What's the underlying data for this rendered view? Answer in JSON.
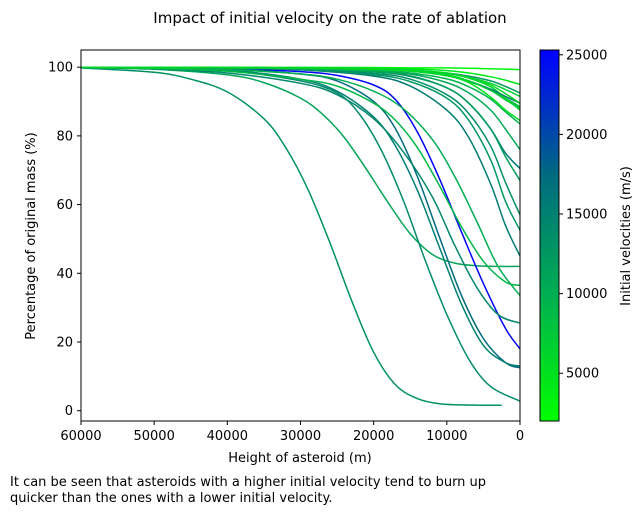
{
  "chart_data": {
    "type": "line",
    "title": "Impact of initial velocity on the rate of ablation",
    "xlabel": "Height of asteroid (m)",
    "ylabel": "Percentage of original mass (%)",
    "xlim": [
      60000,
      0
    ],
    "ylim": [
      -3,
      105
    ],
    "x_inverted": true,
    "grid": false,
    "xticks": [
      60000,
      50000,
      40000,
      30000,
      20000,
      10000,
      0
    ],
    "yticks": [
      0,
      20,
      40,
      60,
      80,
      100
    ],
    "colorbar": {
      "label": "Initial velocities (m/s)",
      "min": 2000,
      "max": 25300,
      "ticks": [
        5000,
        10000,
        15000,
        20000,
        25000
      ],
      "colormap": [
        "#00ff00",
        "#00b050",
        "#006a80",
        "#0000ff"
      ]
    },
    "series": [
      {
        "velocity": 13200,
        "x": [
          60000,
          50000,
          45000,
          40000,
          35000,
          32000,
          29000,
          26000,
          23000,
          20000,
          17000,
          14000,
          11000,
          8000,
          5000,
          2500
        ],
        "y": [
          99.8,
          98.5,
          96.5,
          92.8,
          85.0,
          76.5,
          64.5,
          49.0,
          32.0,
          17.0,
          7.5,
          3.5,
          2.0,
          1.7,
          1.6,
          1.6
        ]
      },
      {
        "velocity": 11000,
        "x": [
          60000,
          50000,
          40000,
          35000,
          30000,
          27000,
          24000,
          21000,
          18000,
          15000,
          12000,
          9000,
          6000,
          3000,
          0
        ],
        "y": [
          99.8,
          99.4,
          97.8,
          95.5,
          91.0,
          86.3,
          79.5,
          70.3,
          60.5,
          51.5,
          45.5,
          43.0,
          42.2,
          42.0,
          42.0
        ]
      },
      {
        "velocity": 25000,
        "x": [
          60000,
          50000,
          40000,
          30000,
          25000,
          20000,
          17000,
          14000,
          11000,
          8000,
          5000,
          2000,
          0
        ],
        "y": [
          100,
          99.9,
          99.6,
          98.7,
          97.6,
          94.8,
          90.5,
          81.0,
          67.5,
          52.0,
          37.0,
          24.0,
          18.0
        ]
      },
      {
        "velocity": 17500,
        "x": [
          60000,
          50000,
          40000,
          30000,
          25000,
          20000,
          17000,
          14000,
          11000,
          8000,
          5000,
          2000,
          0
        ],
        "y": [
          100,
          99.9,
          99.5,
          98.0,
          96.0,
          90.0,
          82.0,
          68.0,
          50.5,
          33.5,
          21.0,
          14.0,
          12.5
        ]
      },
      {
        "velocity": 15200,
        "x": [
          60000,
          50000,
          40000,
          30000,
          25000,
          20000,
          17000,
          14000,
          11000,
          8000,
          5000,
          2000,
          0
        ],
        "y": [
          100,
          99.8,
          99.2,
          96.5,
          93.0,
          85.5,
          77.0,
          64.0,
          47.5,
          31.0,
          19.0,
          14.0,
          13.0
        ]
      },
      {
        "velocity": 14300,
        "x": [
          60000,
          50000,
          40000,
          30000,
          25000,
          20000,
          16000,
          12000,
          9000,
          6000,
          3000,
          0
        ],
        "y": [
          99.9,
          99.5,
          98.3,
          95.3,
          92.0,
          85.0,
          75.5,
          62.3,
          48.5,
          36.2,
          28.0,
          25.5
        ]
      },
      {
        "velocity": 14000,
        "x": [
          60000,
          50000,
          40000,
          30000,
          25000,
          22000,
          19000,
          16000,
          13000,
          10000,
          7000,
          4000,
          0
        ],
        "y": [
          99.9,
          99.7,
          99.0,
          96.0,
          92.5,
          86.5,
          76.0,
          61.5,
          44.0,
          28.0,
          15.0,
          7.0,
          2.8
        ]
      },
      {
        "velocity": 9000,
        "x": [
          60000,
          50000,
          40000,
          30000,
          25000,
          20000,
          17000,
          14000,
          11000,
          8000,
          5000,
          2000,
          0
        ],
        "y": [
          99.9,
          99.6,
          98.8,
          96.5,
          94.5,
          89.5,
          84.5,
          76.5,
          65.5,
          53.5,
          43.5,
          37.5,
          36.5
        ]
      },
      {
        "velocity": 10000,
        "x": [
          60000,
          50000,
          40000,
          30000,
          25000,
          20000,
          16000,
          12000,
          9000,
          6000,
          3000,
          0
        ],
        "y": [
          99.9,
          99.8,
          99.3,
          98.0,
          96.5,
          93.0,
          88.0,
          79.0,
          68.5,
          55.5,
          42.0,
          33.5
        ]
      },
      {
        "velocity": 15500,
        "x": [
          60000,
          50000,
          40000,
          30000,
          20000,
          15000,
          10000,
          7000,
          4000,
          2000,
          0
        ],
        "y": [
          100,
          99.9,
          99.7,
          99.2,
          97.4,
          94.5,
          87.5,
          79.5,
          66.0,
          54.0,
          45.0
        ]
      },
      {
        "velocity": 12500,
        "x": [
          60000,
          50000,
          40000,
          30000,
          20000,
          15000,
          10000,
          7000,
          4000,
          2000,
          0
        ],
        "y": [
          100,
          99.9,
          99.7,
          99.3,
          97.8,
          95.8,
          91.0,
          84.5,
          73.0,
          61.0,
          52.5
        ]
      },
      {
        "velocity": 13500,
        "x": [
          60000,
          50000,
          40000,
          30000,
          20000,
          15000,
          10000,
          7000,
          4000,
          2000,
          0
        ],
        "y": [
          100,
          99.9,
          99.8,
          99.4,
          98.2,
          96.5,
          92.0,
          86.5,
          77.0,
          66.5,
          57.0
        ]
      },
      {
        "velocity": 16000,
        "x": [
          60000,
          50000,
          40000,
          30000,
          20000,
          15000,
          10000,
          7000,
          4000,
          2000,
          0
        ],
        "y": [
          100,
          99.9,
          99.8,
          99.5,
          98.7,
          97.5,
          94.0,
          89.5,
          82.0,
          75.0,
          70.5
        ]
      },
      {
        "velocity": 11500,
        "x": [
          60000,
          50000,
          40000,
          30000,
          20000,
          15000,
          10000,
          7000,
          4000,
          2000,
          0
        ],
        "y": [
          100,
          99.9,
          99.8,
          99.5,
          98.6,
          97.3,
          94.0,
          89.5,
          82.0,
          74.0,
          67.0
        ]
      },
      {
        "velocity": 10500,
        "x": [
          60000,
          50000,
          40000,
          30000,
          20000,
          15000,
          10000,
          7000,
          4000,
          2000,
          0
        ],
        "y": [
          100,
          99.9,
          99.8,
          99.6,
          98.9,
          98.0,
          95.5,
          92.5,
          87.5,
          82.0,
          76.0
        ]
      },
      {
        "velocity": 9500,
        "x": [
          60000,
          50000,
          40000,
          30000,
          20000,
          15000,
          10000,
          7000,
          4000,
          2000,
          0
        ],
        "y": [
          100,
          99.9,
          99.8,
          99.6,
          99.0,
          98.3,
          96.6,
          94.3,
          90.7,
          87.0,
          83.5
        ]
      },
      {
        "velocity": 8200,
        "x": [
          60000,
          50000,
          40000,
          30000,
          20000,
          15000,
          10000,
          7000,
          4000,
          2000,
          0
        ],
        "y": [
          100,
          99.9,
          99.9,
          99.7,
          99.3,
          98.8,
          97.6,
          96.0,
          93.5,
          91.0,
          88.5
        ]
      },
      {
        "velocity": 6500,
        "x": [
          60000,
          50000,
          40000,
          30000,
          20000,
          15000,
          10000,
          7000,
          4000,
          2000,
          0
        ],
        "y": [
          100,
          99.9,
          99.9,
          99.8,
          99.5,
          99.1,
          98.2,
          97.0,
          95.3,
          93.5,
          91.5
        ]
      },
      {
        "velocity": 5800,
        "x": [
          60000,
          50000,
          40000,
          30000,
          20000,
          15000,
          10000,
          7000,
          4000,
          2000,
          0
        ],
        "y": [
          100,
          99.9,
          99.9,
          99.8,
          99.5,
          99.1,
          98.2,
          96.8,
          94.3,
          91.0,
          87.5
        ]
      },
      {
        "velocity": 12200,
        "x": [
          60000,
          50000,
          40000,
          30000,
          20000,
          15000,
          10000,
          7000,
          4000,
          2000,
          0
        ],
        "y": [
          100,
          99.9,
          99.9,
          99.8,
          99.5,
          99.1,
          98.3,
          97.4,
          96.0,
          94.4,
          92.5
        ]
      },
      {
        "velocity": 14700,
        "x": [
          60000,
          50000,
          40000,
          30000,
          20000,
          15000,
          10000,
          7000,
          4000,
          2000,
          0
        ],
        "y": [
          100,
          99.9,
          99.9,
          99.8,
          99.4,
          98.9,
          97.5,
          95.8,
          93.6,
          91.5,
          89.5
        ]
      },
      {
        "velocity": 7200,
        "x": [
          60000,
          50000,
          40000,
          30000,
          20000,
          15000,
          10000,
          7000,
          4000,
          2000,
          0
        ],
        "y": [
          100,
          99.9,
          99.9,
          99.8,
          99.5,
          99.0,
          97.8,
          96.0,
          93.2,
          90.5,
          88.0
        ]
      },
      {
        "velocity": 5200,
        "x": [
          60000,
          50000,
          40000,
          30000,
          20000,
          15000,
          10000,
          7000,
          4000,
          2000,
          0
        ],
        "y": [
          100,
          99.9,
          99.9,
          99.8,
          99.4,
          98.9,
          97.5,
          95.5,
          91.3,
          87.5,
          84.5
        ]
      },
      {
        "velocity": 3000,
        "x": [
          60000,
          50000,
          40000,
          30000,
          20000,
          15000,
          10000,
          5000,
          0
        ],
        "y": [
          100,
          99.9,
          99.9,
          99.9,
          99.9,
          99.8,
          99.8,
          99.6,
          99.3
        ]
      },
      {
        "velocity": 4200,
        "x": [
          60000,
          50000,
          40000,
          30000,
          20000,
          15000,
          10000,
          7000,
          4000,
          2000,
          0
        ],
        "y": [
          100,
          99.9,
          99.9,
          99.9,
          99.7,
          99.5,
          99.0,
          98.3,
          97.2,
          96.2,
          95.0
        ]
      },
      {
        "velocity": 6000,
        "x": [
          60000,
          50000,
          40000,
          30000,
          20000,
          15000,
          10000,
          7000,
          4000,
          2000,
          0
        ],
        "y": [
          100,
          99.9,
          99.9,
          99.8,
          99.6,
          99.2,
          98.3,
          97.0,
          94.8,
          92.3,
          89.5
        ]
      }
    ]
  },
  "caption": {
    "line1": "It can be seen that asteroids with a higher initial velocity tend to burn up",
    "line2": "quicker than the ones with a lower initial velocity."
  }
}
